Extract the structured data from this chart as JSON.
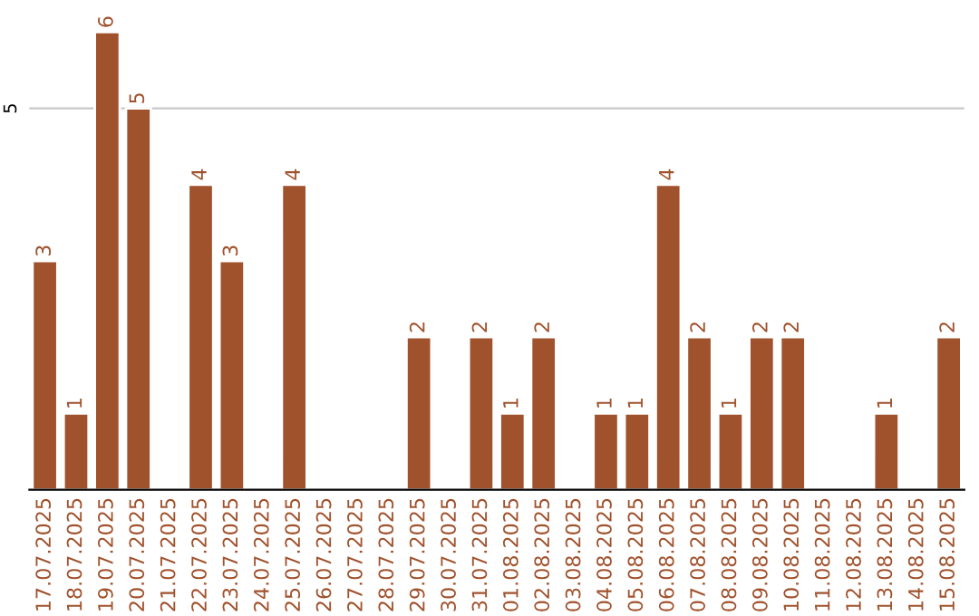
{
  "chart_data": {
    "type": "bar",
    "categories": [
      "17.07.2025",
      "18.07.2025",
      "19.07.2025",
      "20.07.2025",
      "21.07.2025",
      "22.07.2025",
      "23.07.2025",
      "24.07.2025",
      "25.07.2025",
      "26.07.2025",
      "27.07.2025",
      "28.07.2025",
      "29.07.2025",
      "30.07.2025",
      "31.07.2025",
      "01.08.2025",
      "02.08.2025",
      "03.08.2025",
      "04.08.2025",
      "05.08.2025",
      "06.08.2025",
      "07.08.2025",
      "08.08.2025",
      "09.08.2025",
      "10.08.2025",
      "11.08.2025",
      "12.08.2025",
      "13.08.2025",
      "14.08.2025",
      "15.08.2025"
    ],
    "values": [
      3,
      1,
      6,
      5,
      null,
      4,
      3,
      null,
      4,
      null,
      null,
      null,
      2,
      null,
      2,
      1,
      2,
      null,
      1,
      1,
      4,
      2,
      1,
      2,
      2,
      null,
      null,
      1,
      null,
      2
    ],
    "value_labels": [
      "3",
      "1",
      "6",
      "5",
      null,
      "4",
      "3",
      null,
      "4",
      null,
      null,
      null,
      "2",
      null,
      "2",
      "1",
      "2",
      null,
      "1",
      "1",
      "4",
      "2",
      "1",
      "2",
      "2",
      null,
      null,
      "1",
      null,
      "2"
    ],
    "color": "#a0522d",
    "ref_lines": [
      {
        "axis": "y",
        "value": 5,
        "label": "5",
        "color": "#c8c8c8"
      }
    ]
  }
}
